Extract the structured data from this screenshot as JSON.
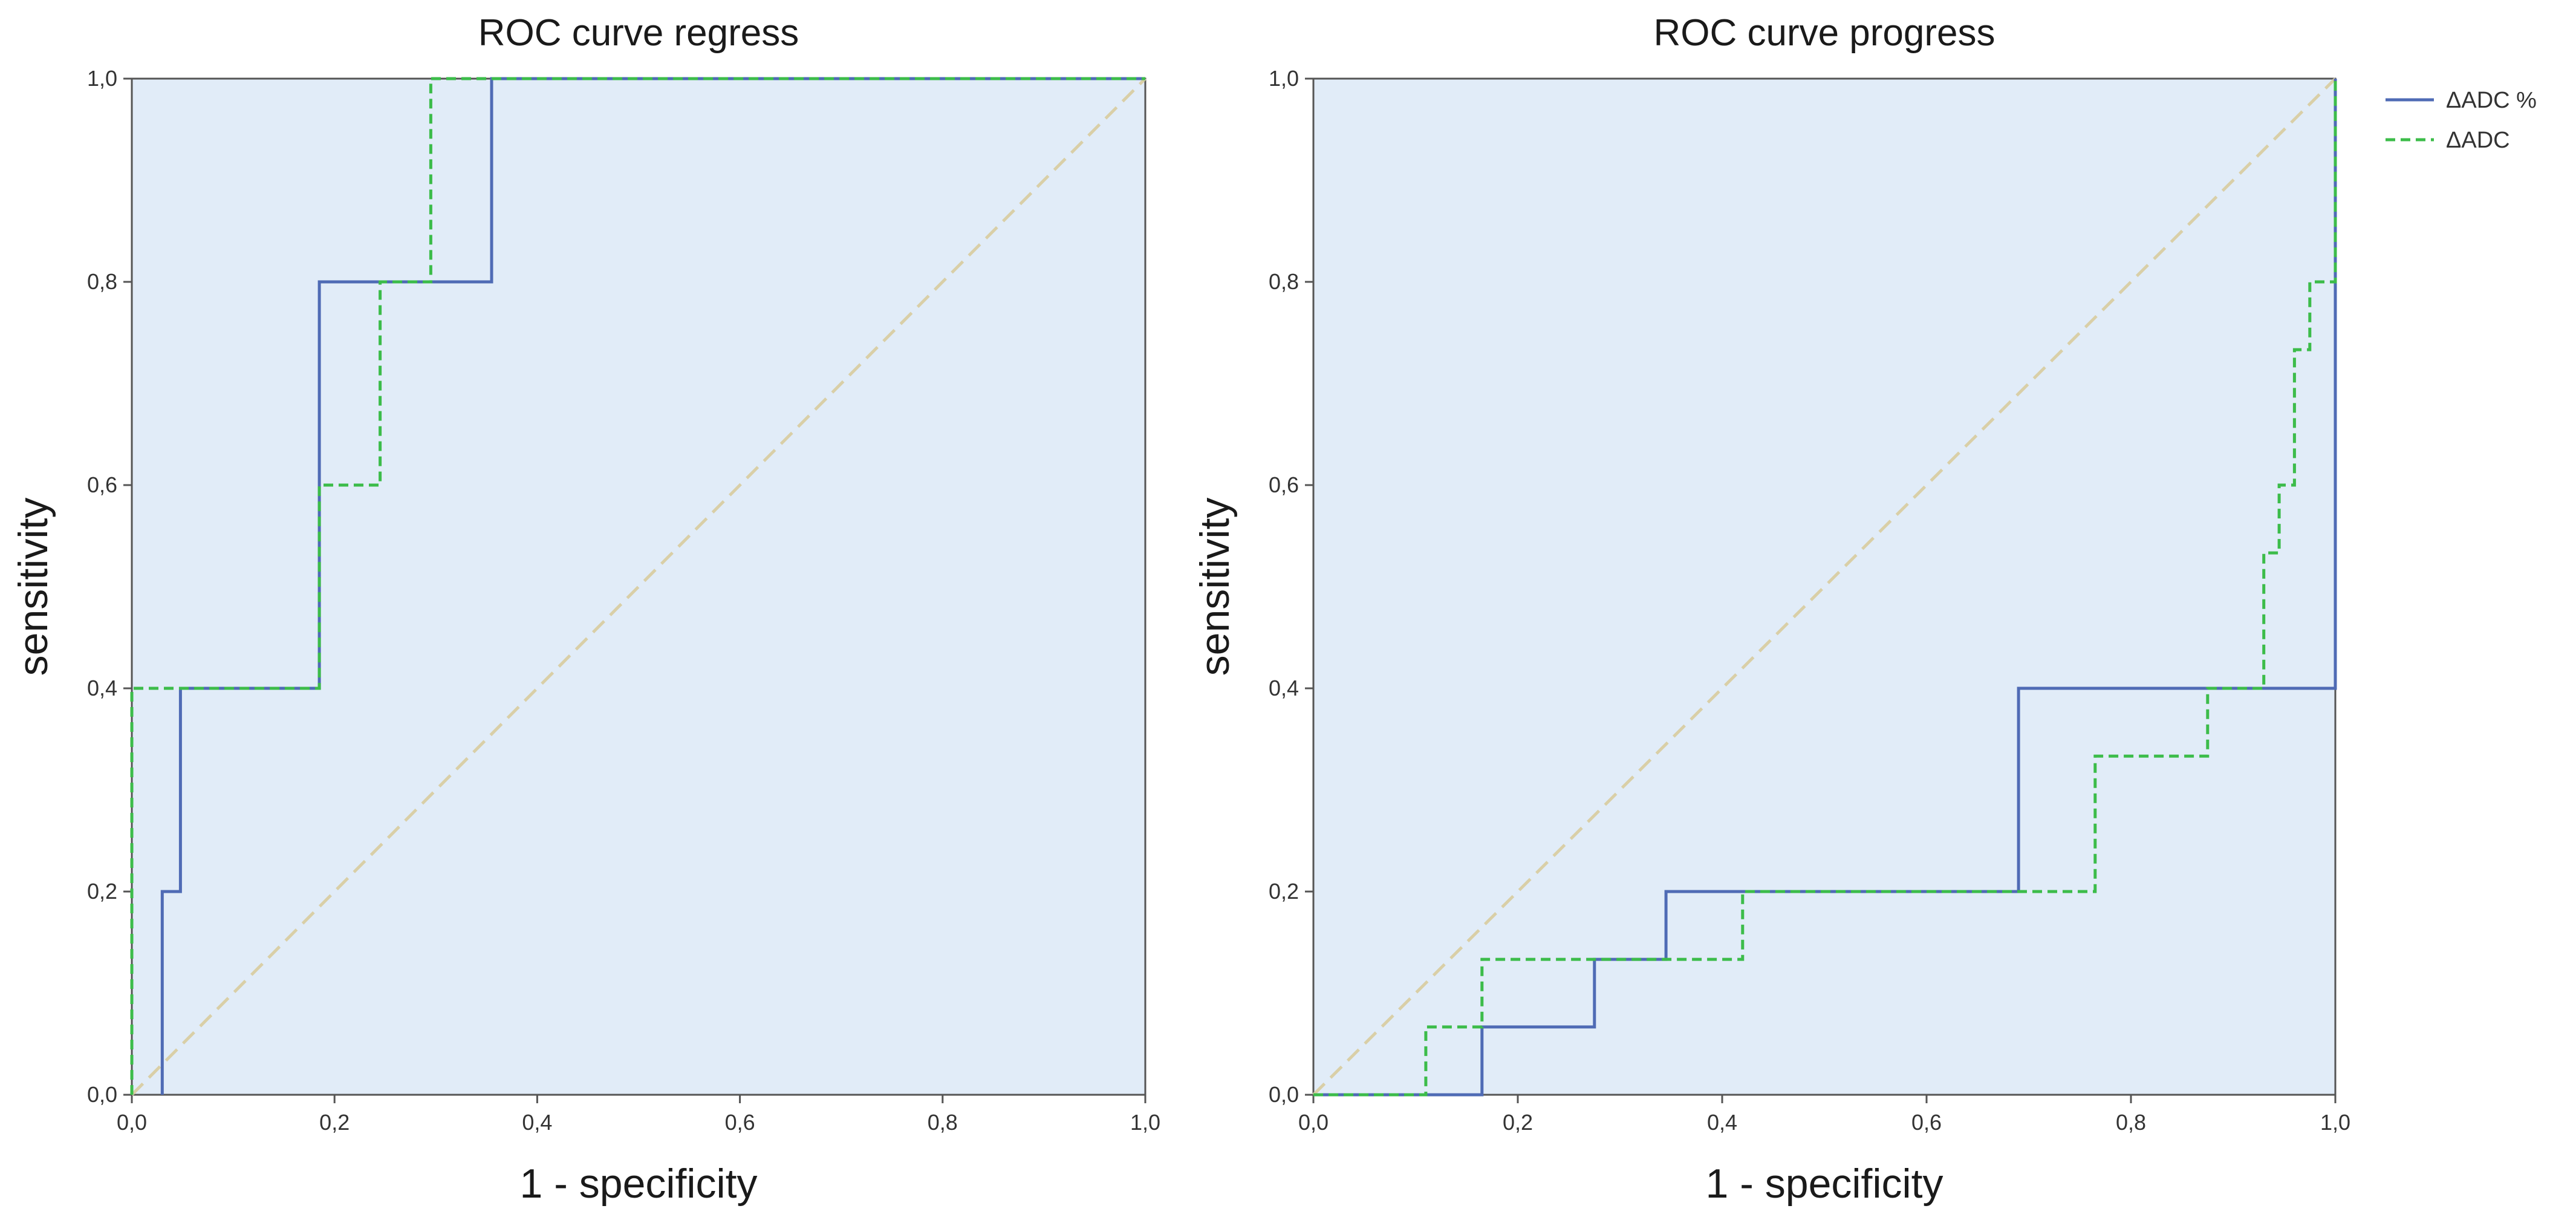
{
  "chart_data": [
    {
      "type": "line",
      "title": "ROC curve regress",
      "xlabel": "1 - specificity",
      "ylabel": "sensitivity",
      "xlim": [
        0,
        1
      ],
      "ylim": [
        0,
        1
      ],
      "xticks": [
        "0,0",
        "0,2",
        "0,4",
        "0,6",
        "0,8",
        "1,0"
      ],
      "yticks": [
        "0,0",
        "0,2",
        "0,4",
        "0,6",
        "0,8",
        "1,0"
      ],
      "reference_line": {
        "x": [
          0,
          1
        ],
        "y": [
          0,
          1
        ],
        "color": "#d9cfa7"
      },
      "series": [
        {
          "name": "ΔADC %",
          "color": "#4f6bb5",
          "style": "solid",
          "x": [
            0.03,
            0.03,
            0.048,
            0.048,
            0.185,
            0.185,
            0.355,
            0.355,
            1.0
          ],
          "y": [
            0.0,
            0.2,
            0.2,
            0.4,
            0.4,
            0.8,
            0.8,
            1.0,
            1.0
          ]
        },
        {
          "name": "ΔADC",
          "color": "#3cbc4a",
          "style": "dashed",
          "x": [
            0.0,
            0.0,
            0.185,
            0.185,
            0.245,
            0.245,
            0.295,
            0.295,
            1.0
          ],
          "y": [
            0.0,
            0.4,
            0.4,
            0.6,
            0.6,
            0.8,
            0.8,
            1.0,
            1.0
          ]
        }
      ]
    },
    {
      "type": "line",
      "title": "ROC curve progress",
      "xlabel": "1 - specificity",
      "ylabel": "sensitivity",
      "xlim": [
        0,
        1
      ],
      "ylim": [
        0,
        1
      ],
      "xticks": [
        "0,0",
        "0,2",
        "0,4",
        "0,6",
        "0,8",
        "1,0"
      ],
      "yticks": [
        "0,0",
        "0,2",
        "0,4",
        "0,6",
        "0,8",
        "1,0"
      ],
      "reference_line": {
        "x": [
          0,
          1
        ],
        "y": [
          0,
          1
        ],
        "color": "#d9cfa7"
      },
      "legend": {
        "position": "top-right-outside",
        "entries": [
          "ΔADC %",
          "ΔADC"
        ]
      },
      "series": [
        {
          "name": "ΔADC %",
          "color": "#4f6bb5",
          "style": "solid",
          "x": [
            0.0,
            0.165,
            0.165,
            0.275,
            0.275,
            0.345,
            0.345,
            0.69,
            0.69,
            1.0,
            1.0
          ],
          "y": [
            0.0,
            0.0,
            0.0667,
            0.0667,
            0.1333,
            0.1333,
            0.2,
            0.2,
            0.4,
            0.4,
            1.0
          ]
        },
        {
          "name": "ΔADC",
          "color": "#3cbc4a",
          "style": "dashed",
          "x": [
            0.0,
            0.11,
            0.11,
            0.165,
            0.165,
            0.42,
            0.42,
            0.765,
            0.765,
            0.875,
            0.875,
            0.93,
            0.93,
            0.945,
            0.945,
            0.96,
            0.96,
            0.975,
            0.975,
            0.99,
            0.99,
            1.0,
            1.0
          ],
          "y": [
            0.0,
            0.0,
            0.0667,
            0.0667,
            0.1333,
            0.1333,
            0.2,
            0.2,
            0.3333,
            0.3333,
            0.4,
            0.4,
            0.5333,
            0.5333,
            0.6,
            0.6,
            0.7333,
            0.7333,
            0.8,
            0.8,
            0.8,
            0.8,
            1.0
          ]
        }
      ]
    }
  ]
}
